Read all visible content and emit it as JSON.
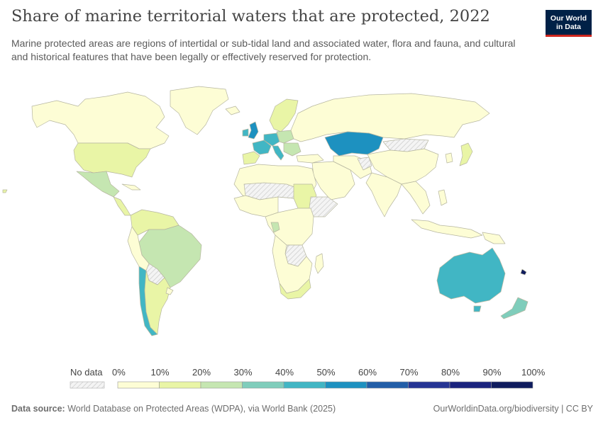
{
  "title": "Share of marine territorial waters that are protected, 2022",
  "subtitle": "Marine protected areas are regions of intertidal or sub-tidal land and associated water, flora and fauna, and cultural and historical features that have been legally or effectively reserved for protection.",
  "logo": {
    "line1": "Our World",
    "line2": "in Data"
  },
  "legend": {
    "no_data_label": "No data",
    "ticks": [
      "0%",
      "10%",
      "20%",
      "30%",
      "40%",
      "50%",
      "60%",
      "70%",
      "80%",
      "90%",
      "100%"
    ],
    "colors": [
      "#fdfdd5",
      "#e9f5a6",
      "#c5e6b1",
      "#7fcdbb",
      "#41b6c4",
      "#1d91c0",
      "#225ea8",
      "#253494",
      "#1a237e",
      "#0f1c5e"
    ]
  },
  "footer": {
    "source_label": "Data source:",
    "source_text": "World Database on Protected Areas (WDPA), via World Bank (2025)",
    "right_text": "OurWorldinData.org/biodiversity | CC BY"
  },
  "map_colors": {
    "ocean": "#ffffff",
    "border": "#b8b8a0",
    "no_data": "#ececec"
  }
}
